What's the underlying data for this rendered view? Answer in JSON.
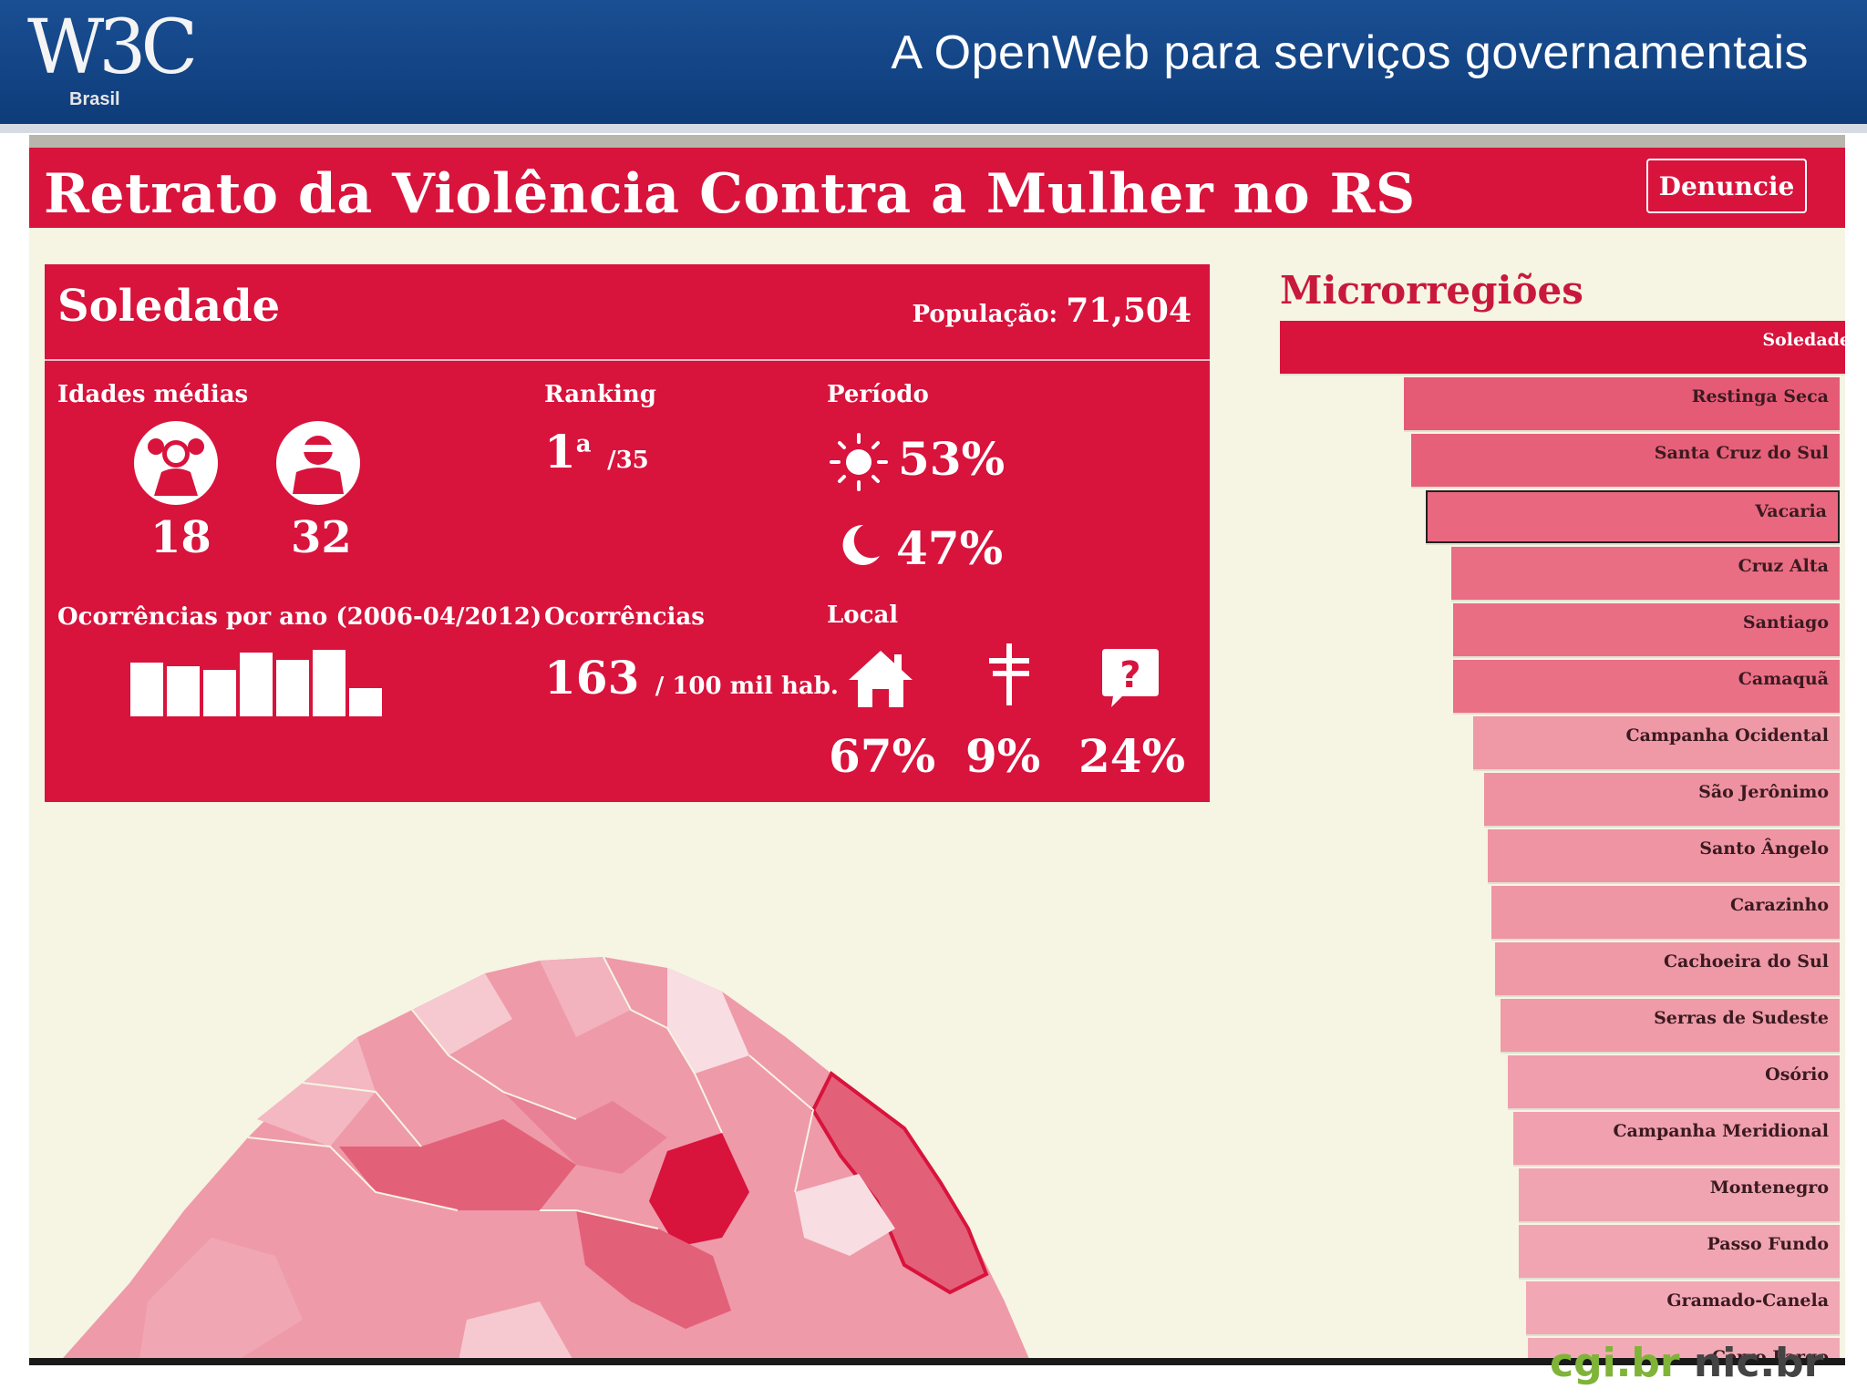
{
  "slide": {
    "logo_text": "W3C",
    "logo_sub": "Brasil",
    "title": "A OpenWeb para serviços governamentais"
  },
  "app": {
    "title": "Retrato da Violência Contra a Mulher no RS",
    "denuncie_label": "Denuncie",
    "colors": {
      "primary": "#d8133c",
      "background": "#f6f4e3",
      "header": "#12427f"
    }
  },
  "panel": {
    "city": "Soledade",
    "population_label": "População:",
    "population_value": "71,504",
    "ages": {
      "label": "Idades médias",
      "victim_icon": "woman-icon",
      "victim_age": "18",
      "aggressor_icon": "masked-man-icon",
      "aggressor_age": "32"
    },
    "ranking": {
      "label": "Ranking",
      "value": "1",
      "sup": "a",
      "total": "/35"
    },
    "period": {
      "label": "Período",
      "day_icon": "sun-icon",
      "day_value": "53%",
      "night_icon": "moon-icon",
      "night_value": "47%"
    },
    "per_year": {
      "label": "Ocorrências por ano (2006-04/2012)",
      "values": [
        76,
        70,
        66,
        90,
        79,
        94,
        40
      ]
    },
    "occurrences": {
      "label": "Ocorrências",
      "value": "163",
      "unit": "/ 100 mil hab."
    },
    "local": {
      "label": "Local",
      "home_icon": "house-icon",
      "home_value": "67%",
      "street_icon": "signpost-icon",
      "street_value": "9%",
      "unknown_icon": "question-icon",
      "unknown_value": "24%"
    }
  },
  "micro": {
    "title": "Microrregiões",
    "items": [
      {
        "name": "Soledade",
        "color": "#d8133c"
      },
      {
        "name": "Restinga Seca",
        "color": "#e55b76"
      },
      {
        "name": "Santa Cruz do Sul",
        "color": "#e66079"
      },
      {
        "name": "Vacaria",
        "color": "#e9687f"
      },
      {
        "name": "Cruz Alta",
        "color": "#e96d83"
      },
      {
        "name": "Santiago",
        "color": "#e96e84"
      },
      {
        "name": "Camaquã",
        "color": "#ea7086"
      },
      {
        "name": "Campanha Ocidental",
        "color": "#ef98a6"
      },
      {
        "name": "São Jerônimo",
        "color": "#ee92a1"
      },
      {
        "name": "Santo Ângelo",
        "color": "#ee94a3"
      },
      {
        "name": "Carazinho",
        "color": "#ee96a4"
      },
      {
        "name": "Cachoeira do Sul",
        "color": "#ef98a6"
      },
      {
        "name": "Serras de Sudeste",
        "color": "#ef9ba8"
      },
      {
        "name": "Osório",
        "color": "#f09ead"
      },
      {
        "name": "Campanha Meridional",
        "color": "#f0a0ae"
      },
      {
        "name": "Montenegro",
        "color": "#f0a3b0"
      },
      {
        "name": "Passo Fundo",
        "color": "#f1a5b2"
      },
      {
        "name": "Gramado-Canela",
        "color": "#f1a8b4"
      },
      {
        "name": "Cerro Largo",
        "color": "#f2abb6"
      }
    ]
  },
  "footer": {
    "logo_a": "cgi.br",
    "logo_b": "nic.br"
  }
}
